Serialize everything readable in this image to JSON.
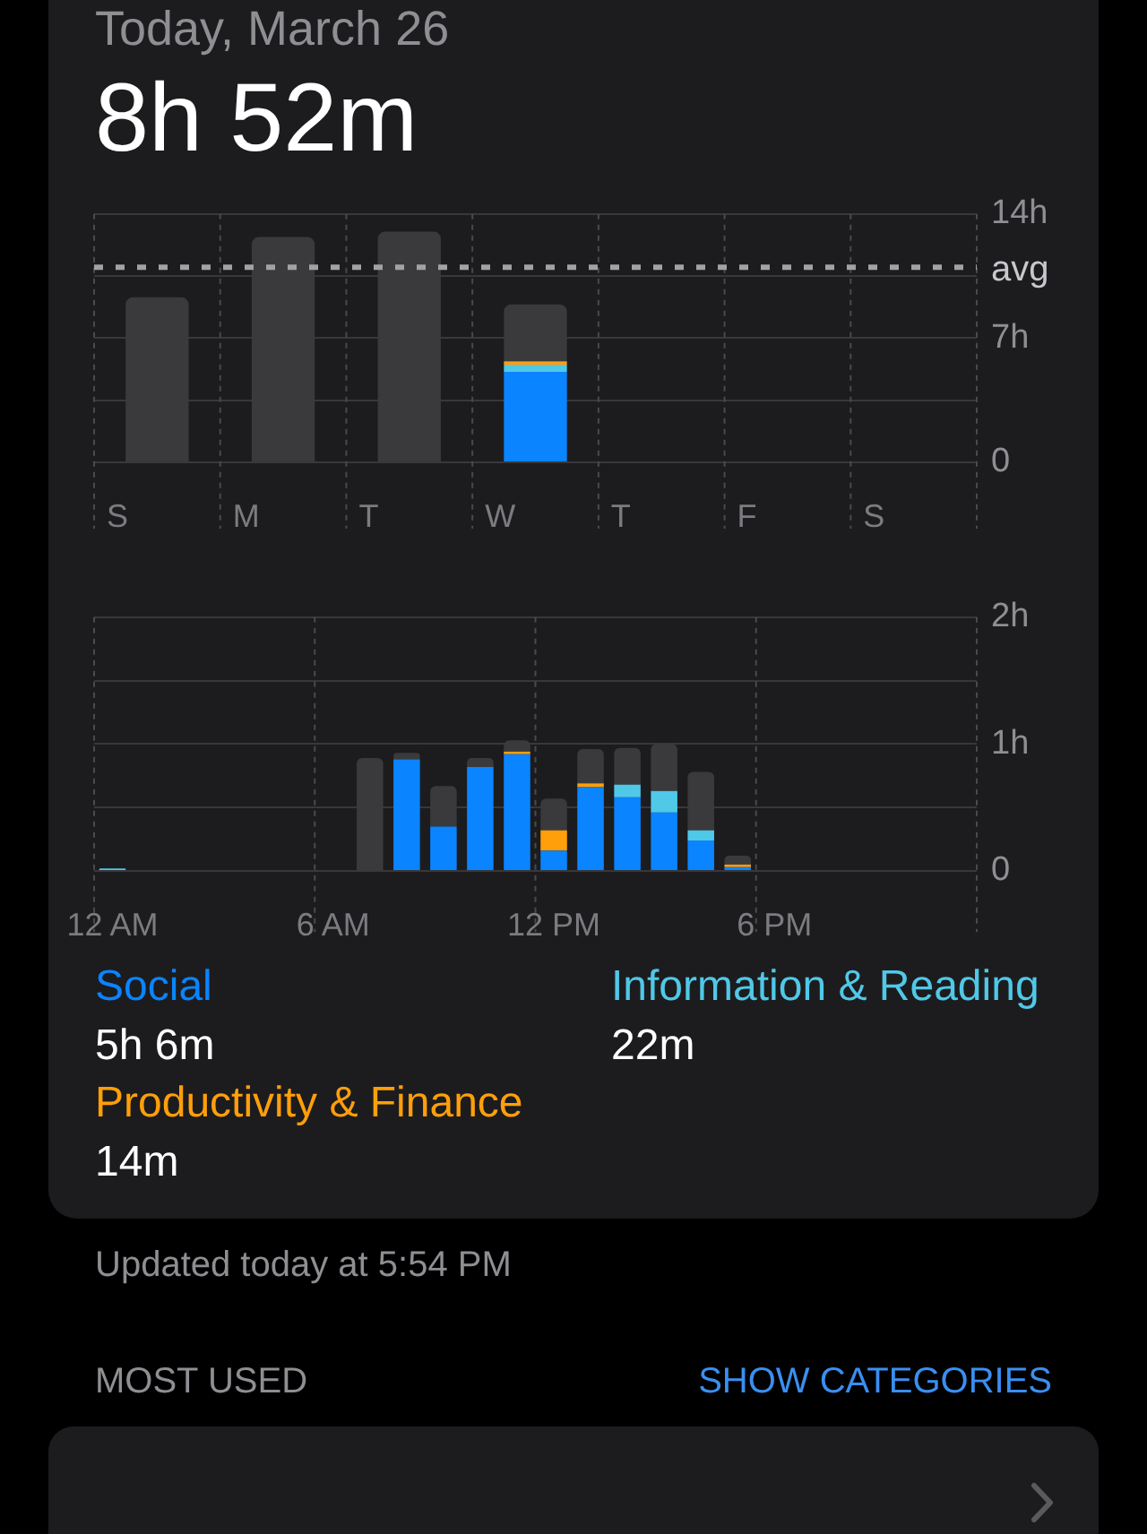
{
  "chart_data": [
    {
      "type": "bar",
      "title": "Today, March 26",
      "subtitle": "8h 52m",
      "categories": [
        "S",
        "M",
        "T",
        "W",
        "T",
        "F",
        "S"
      ],
      "stacked": true,
      "series": [
        {
          "color": "#0a84ff",
          "values": [
            null,
            null,
            null,
            5.1,
            null,
            null,
            null
          ]
        },
        {
          "color": "#50c8e8",
          "values": [
            null,
            null,
            null,
            0.4,
            null,
            null,
            null
          ]
        },
        {
          "color": "#ff9f0a",
          "values": [
            null,
            null,
            null,
            0.2,
            null,
            null,
            null
          ]
        },
        {
          "color": "#3a3a3c",
          "values": [
            9.3,
            12.7,
            13,
            3.2,
            null,
            null,
            null
          ]
        }
      ],
      "ylim": [
        0,
        14
      ],
      "yticks": [
        0,
        {
          "value": 3.5,
          "label": null
        },
        {
          "value": 7,
          "label": "7h"
        },
        {
          "value": 10.5,
          "label": null
        },
        {
          "value": 14,
          "label": "14h"
        }
      ],
      "grid": true,
      "ref_lines": [
        {
          "axis": "y",
          "value": 11,
          "label": "avg",
          "color": "#a1a1a6",
          "line_style": "dashed"
        }
      ]
    },
    {
      "type": "bar",
      "categories": [
        "12 AM",
        null,
        null,
        null,
        null,
        null,
        "6 AM",
        null,
        null,
        null,
        null,
        null,
        "12 PM",
        null,
        null,
        null,
        null,
        null,
        "6 PM",
        null,
        null,
        null,
        null,
        null
      ],
      "stacked": true,
      "series": [
        {
          "name": "Social",
          "color": "#0a84ff",
          "values": [
            null,
            null,
            null,
            null,
            null,
            null,
            null,
            null,
            0.88,
            0.35,
            0.82,
            0.92,
            0.16,
            0.66,
            0.58,
            0.46,
            0.24,
            0.03,
            null,
            null,
            null,
            null,
            null,
            null
          ]
        },
        {
          "name": "Information & Reading",
          "color": "#50c8e8",
          "values": [
            0.02,
            null,
            null,
            null,
            null,
            null,
            null,
            null,
            null,
            null,
            null,
            null,
            null,
            null,
            0.1,
            0.17,
            0.08,
            null,
            null,
            null,
            null,
            null,
            null,
            null
          ]
        },
        {
          "name": "Productivity & Finance",
          "color": "#ff9f0a",
          "values": [
            null,
            null,
            null,
            null,
            null,
            null,
            null,
            null,
            null,
            null,
            null,
            0.02,
            0.16,
            0.03,
            null,
            null,
            null,
            0.02,
            null,
            null,
            null,
            null,
            null,
            null
          ]
        },
        {
          "color": "#3a3a3c",
          "values": [
            null,
            null,
            null,
            null,
            null,
            null,
            null,
            0.89,
            0.05,
            0.32,
            0.07,
            0.09,
            0.25,
            0.27,
            0.29,
            0.37,
            0.46,
            0.07,
            null,
            null,
            null,
            null,
            null,
            null
          ]
        }
      ],
      "ylim": [
        0,
        2
      ],
      "yticks": [
        0,
        {
          "value": 0.5,
          "label": null
        },
        {
          "value": 1,
          "label": "1h"
        },
        {
          "value": 1.5,
          "label": null
        },
        {
          "value": 2,
          "label": "2h"
        }
      ],
      "grid": true,
      "annotations": [
        "5h 6m",
        "22m",
        "14m",
        "Updated today at 5:54 PM",
        "MOST USED",
        "SHOW CATEGORIES"
      ]
    }
  ]
}
